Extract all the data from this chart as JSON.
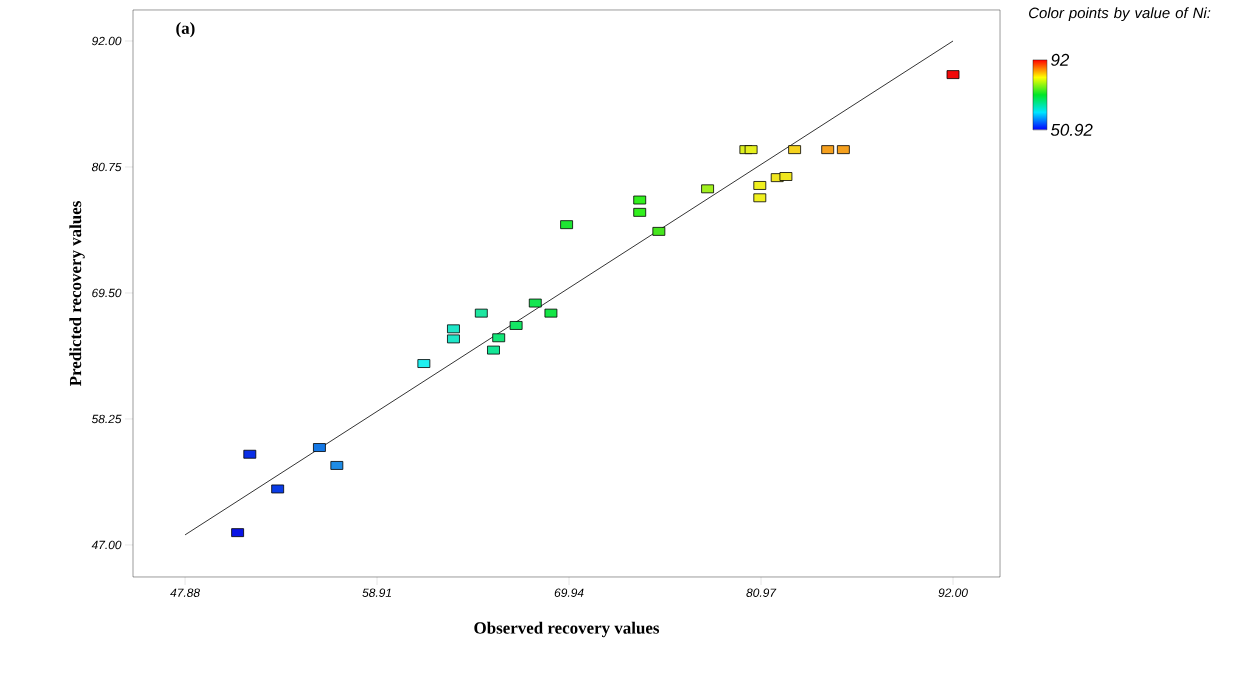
{
  "chart_data": {
    "type": "scatter",
    "xlabel": "Observed recovery values",
    "ylabel": "Predicted recovery values",
    "clabel": "Color points by value of Ni:",
    "annotations": [
      "(a)"
    ],
    "xlim": [
      44.89,
      94.7
    ],
    "ylim": [
      44.14,
      94.77
    ],
    "xticks": [
      47.88,
      58.91,
      69.94,
      80.97,
      {
        "value": 92,
        "label": "92.00"
      }
    ],
    "yticks": [
      {
        "value": 47,
        "label": "47.00"
      },
      58.25,
      {
        "value": 69.5,
        "label": "69.50"
      },
      80.75,
      {
        "value": 92,
        "label": "92.00"
      }
    ],
    "clim": [
      50.92,
      92
    ],
    "cticks": [
      50.92,
      92
    ],
    "marker": "square",
    "series": [
      {
        "x": [
          50.9,
          51.6,
          53.2,
          55.6,
          56.6,
          61.6,
          63.3,
          63.3,
          64.9,
          65.6,
          65.9,
          66.9,
          68.0,
          68.9,
          69.8,
          74.0,
          74.0,
          75.1,
          77.9,
          80.1,
          80.4,
          80.9,
          80.9,
          81.9,
          82.4,
          82.9,
          84.8,
          85.7,
          92.0
        ],
        "values": [
          48.1,
          55.1,
          52.0,
          55.7,
          54.1,
          63.2,
          65.4,
          66.3,
          67.7,
          64.4,
          65.5,
          66.6,
          68.6,
          67.7,
          75.6,
          77.8,
          76.7,
          75.0,
          78.8,
          82.3,
          82.3,
          79.1,
          78.0,
          79.8,
          79.9,
          82.3,
          82.3,
          82.3,
          89.0
        ],
        "colors": [
          "#0a14e6",
          "#0a2ee6",
          "#0a3ce6",
          "#1478e6",
          "#1e8ce6",
          "#1ef0f0",
          "#1ee6c8",
          "#1ee6c8",
          "#1ee6a0",
          "#14e696",
          "#14e678",
          "#14e664",
          "#14e650",
          "#14e646",
          "#1ee632",
          "#32f01e",
          "#32f01e",
          "#46e61e",
          "#a0f01e",
          "#dcf01e",
          "#e6f01e",
          "#f0f01e",
          "#f0f01e",
          "#f0e61e",
          "#f0e61e",
          "#f5d21e",
          "#f5a01e",
          "#f5a01e",
          "#f00a0a"
        ]
      },
      {
        "type": "line",
        "x": [
          47.88,
          92
        ],
        "values": [
          47.9,
          92.0
        ],
        "color": "#000000",
        "marker": "none"
      }
    ]
  }
}
